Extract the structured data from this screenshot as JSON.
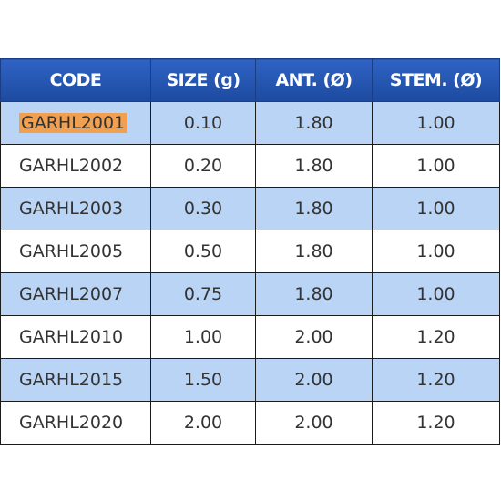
{
  "table": {
    "header": [
      "CODE",
      "SIZE (g)",
      "ANT. (Ø)",
      "STEM. (Ø)"
    ],
    "rows": [
      [
        "GARHL2001",
        "0.10",
        "1.80",
        "1.00"
      ],
      [
        "GARHL2002",
        "0.20",
        "1.80",
        "1.00"
      ],
      [
        "GARHL2003",
        "0.30",
        "1.80",
        "1.00"
      ],
      [
        "GARHL2005",
        "0.50",
        "1.80",
        "1.00"
      ],
      [
        "GARHL2007",
        "0.75",
        "1.80",
        "1.00"
      ],
      [
        "GARHL2010",
        "1.00",
        "2.00",
        "1.20"
      ],
      [
        "GARHL2015",
        "1.50",
        "2.00",
        "1.20"
      ],
      [
        "GARHL2020",
        "2.00",
        "2.00",
        "1.20"
      ]
    ]
  }
}
